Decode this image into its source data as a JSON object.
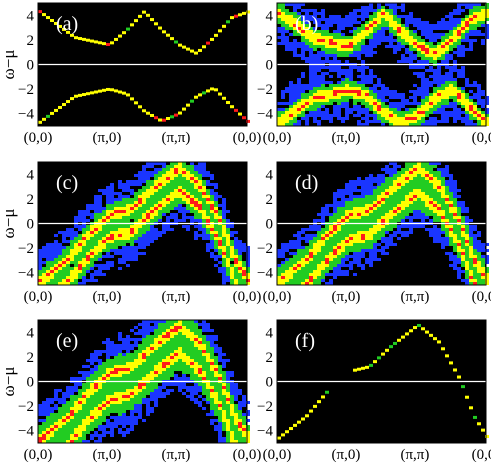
{
  "figure": {
    "ylabel": "ω−μ",
    "colors": {
      "background": "#000000",
      "zero_line": "#ffffff",
      "low": "#1a35ff",
      "mid": "#22cc22",
      "high": "#ffff00",
      "peak": "#ff1a1a",
      "frame": "#ffffff"
    }
  },
  "chart_data": [
    {
      "type": "heatmap",
      "panel_label": "(a)",
      "x_ticks": [
        "(0,0)",
        "(π,0)",
        "(π,π)",
        "(0,0)"
      ],
      "y_ticks": [
        "4",
        "2",
        "0",
        "−2",
        "−4"
      ],
      "ylim": [
        -5,
        5
      ],
      "legend": "none",
      "description_series": [
        {
          "name": "",
          "x": [
            0,
            0.25,
            0.5,
            0.75,
            1.0,
            1.25,
            1.5,
            1.75,
            2.0,
            2.25,
            2.5,
            2.75,
            3.0
          ],
          "y": [
            4.3,
            3.6,
            2.2,
            1.6,
            1.6,
            2.8,
            4.3,
            2.8,
            1.6,
            0.9,
            2.2,
            3.8,
            4.3
          ]
        },
        {
          "name": "",
          "x": [
            0,
            0.25,
            0.5,
            0.75,
            1.0,
            1.25,
            1.5,
            1.75,
            2.0,
            2.25,
            2.5,
            2.75,
            3.0
          ],
          "y": [
            -4.7,
            -3.6,
            -2.6,
            -2.0,
            -2.0,
            -2.4,
            -3.8,
            -4.6,
            -4.0,
            -2.6,
            -1.9,
            -3.4,
            -4.7
          ]
        }
      ]
    },
    {
      "type": "heatmap",
      "panel_label": "(b)",
      "x_ticks": [
        "(0,0)",
        "(π,0)",
        "(π,π)",
        "(0,0)"
      ],
      "y_ticks": [
        "4",
        "2",
        "0",
        "−2",
        "−4"
      ],
      "ylim": [
        -5,
        5
      ],
      "legend": "none"
    },
    {
      "type": "heatmap",
      "panel_label": "(c)",
      "x_ticks": [
        "(0,0)",
        "(π,0)",
        "(π,π)",
        "(0,0)"
      ],
      "y_ticks": [
        "4",
        "2",
        "0",
        "−2",
        "−4"
      ],
      "ylim": [
        -5,
        5
      ],
      "legend": "none"
    },
    {
      "type": "heatmap",
      "panel_label": "(d)",
      "x_ticks": [
        "(0,0)",
        "(π,0)",
        "(π,π)",
        "(0,0)"
      ],
      "y_ticks": [
        "4",
        "2",
        "0",
        "−2",
        "−4"
      ],
      "ylim": [
        -5,
        5
      ],
      "legend": "none"
    },
    {
      "type": "heatmap",
      "panel_label": "(e)",
      "x_ticks": [
        "(0,0)",
        "(π,0)",
        "(π,π)",
        "(0,0)"
      ],
      "y_ticks": [
        "4",
        "2",
        "0",
        "−2",
        "−4"
      ],
      "ylim": [
        -5,
        5
      ],
      "legend": "none"
    },
    {
      "type": "line",
      "panel_label": "(f)",
      "x_ticks": [
        "(0,0)",
        "(π,0)",
        "(π,π)",
        "(0,0)"
      ],
      "y_ticks": [
        "4",
        "2",
        "0",
        "−2",
        "−4"
      ],
      "ylim": [
        -5,
        5
      ],
      "legend": "none"
    }
  ]
}
